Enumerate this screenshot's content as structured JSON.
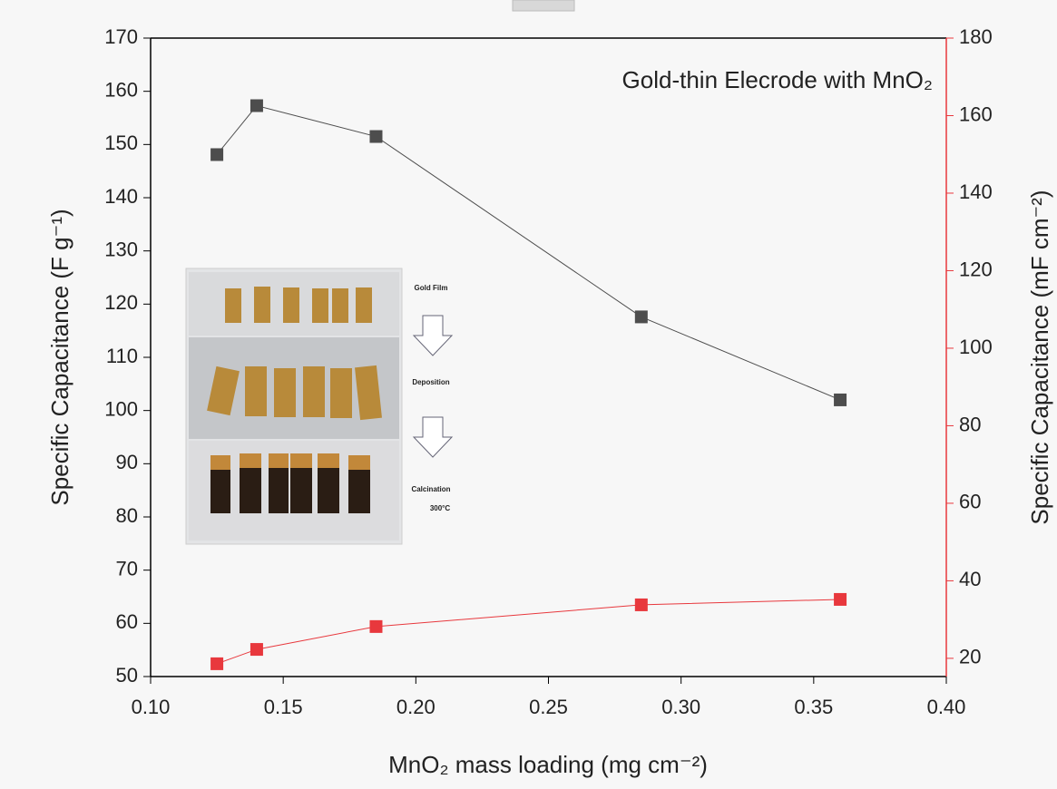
{
  "chart_data": {
    "type": "line",
    "title": "Gold-thin Elecrode with MnO₂",
    "x_label": "MnO₂ mass loading (mg cm⁻²)",
    "y_label": "Specific Capacitance (F g⁻¹)",
    "y2_label": "Specific Capacitance (mF cm⁻²)",
    "x": [
      0.125,
      0.14,
      0.185,
      0.285,
      0.36
    ],
    "series": [
      {
        "name": "Specific Capacitance (F g⁻¹)",
        "color": "#4d4d4d",
        "values": [
          148.1,
          157.3,
          151.5,
          117.6,
          102.0
        ]
      },
      {
        "name": "Specific Capacitance (mF cm⁻²)",
        "color": "#e8383d",
        "axis": "y2",
        "values": [
          18.6,
          22.3,
          28.2,
          33.8,
          35.2
        ]
      }
    ],
    "xlim": [
      0.1,
      0.4
    ],
    "xticks": [
      {
        "value": 0.1,
        "label": "0.10"
      },
      {
        "value": 0.15,
        "label": "0.15"
      },
      {
        "value": 0.2,
        "label": "0.20"
      },
      {
        "value": 0.25,
        "label": "0.25"
      },
      {
        "value": 0.3,
        "label": "0.30"
      },
      {
        "value": 0.35,
        "label": "0.35"
      },
      {
        "value": 0.4,
        "label": "0.40"
      }
    ],
    "ylim": [
      50,
      170
    ],
    "yticks": [
      50,
      60,
      70,
      80,
      90,
      100,
      110,
      120,
      130,
      140,
      150,
      160,
      170
    ],
    "y2lim": [
      15.3,
      180
    ],
    "y2ticks": [
      20,
      40,
      60,
      80,
      100,
      120,
      140,
      160,
      180
    ],
    "annotations": [
      "Gold Film",
      "Deposition",
      "Calcination",
      "300°C"
    ]
  }
}
